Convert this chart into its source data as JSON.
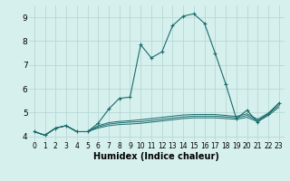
{
  "xlabel": "Humidex (Indice chaleur)",
  "bg_color": "#d6f0ee",
  "grid_color": "#b8d8d4",
  "line_color": "#1a6b6b",
  "xlim": [
    -0.5,
    23.5
  ],
  "ylim": [
    3.8,
    9.5
  ],
  "yticks": [
    4,
    5,
    6,
    7,
    8,
    9
  ],
  "xticks": [
    0,
    1,
    2,
    3,
    4,
    5,
    6,
    7,
    8,
    9,
    10,
    11,
    12,
    13,
    14,
    15,
    16,
    17,
    18,
    19,
    20,
    21,
    22,
    23
  ],
  "series0": [
    4.2,
    4.05,
    4.35,
    4.45,
    4.2,
    4.2,
    4.55,
    5.15,
    5.6,
    5.65,
    7.85,
    7.3,
    7.55,
    8.65,
    9.05,
    9.15,
    8.75,
    7.5,
    6.2,
    4.75,
    5.1,
    4.6,
    4.95,
    5.4
  ],
  "series1": [
    4.2,
    4.05,
    4.35,
    4.45,
    4.2,
    4.2,
    4.35,
    4.45,
    4.5,
    4.52,
    4.55,
    4.6,
    4.65,
    4.7,
    4.75,
    4.78,
    4.78,
    4.78,
    4.75,
    4.72,
    4.8,
    4.62,
    4.88,
    5.22
  ],
  "series2": [
    4.2,
    4.05,
    4.35,
    4.45,
    4.2,
    4.2,
    4.4,
    4.52,
    4.57,
    4.6,
    4.62,
    4.67,
    4.72,
    4.77,
    4.82,
    4.85,
    4.85,
    4.85,
    4.82,
    4.78,
    4.88,
    4.67,
    4.93,
    5.3
  ],
  "series3": [
    4.2,
    4.05,
    4.35,
    4.45,
    4.2,
    4.2,
    4.45,
    4.58,
    4.63,
    4.66,
    4.7,
    4.75,
    4.8,
    4.85,
    4.9,
    4.92,
    4.92,
    4.92,
    4.88,
    4.84,
    4.95,
    4.72,
    4.98,
    5.38
  ]
}
